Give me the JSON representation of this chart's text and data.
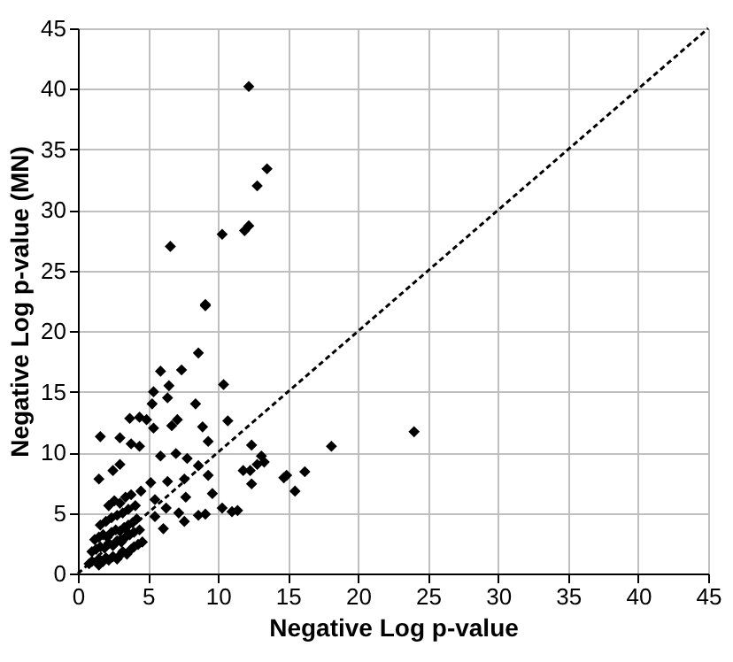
{
  "chart_data": {
    "type": "scatter",
    "xlabel": "Negative Log p-value",
    "ylabel": "Negative Log p-value (MN)",
    "xlim": [
      0,
      45
    ],
    "ylim": [
      0,
      45
    ],
    "xticks": [
      0,
      5,
      10,
      15,
      20,
      25,
      30,
      35,
      40,
      45
    ],
    "yticks": [
      0,
      5,
      10,
      15,
      20,
      25,
      30,
      35,
      40,
      45
    ],
    "grid": true,
    "series": [
      {
        "color": "#000000",
        "marker": "diamond",
        "x": [
          12.2,
          13.5,
          12.8,
          12.2,
          11.9,
          10.3,
          6.6,
          9.1,
          24,
          18.1,
          9.1,
          8.6,
          5.9,
          7.4,
          6.5,
          5.4,
          10.4,
          6.4,
          8.4,
          5.3,
          3.7,
          4.4,
          4.9,
          5.4,
          6.7,
          7.1,
          8.9,
          10.7,
          1.6,
          3.0,
          3.8,
          4.4,
          9.3,
          12.4,
          7.0,
          5.9,
          7.8,
          13.1,
          13.3,
          12.8,
          11.8,
          12.3,
          16.2,
          14.9,
          14.7,
          8.6,
          9.3,
          6.4,
          7.6,
          1.5,
          2.5,
          3.0,
          5.2,
          12.4,
          15.5,
          9.6,
          7.7,
          5.5,
          6.3,
          9.1,
          8.6,
          10.3,
          11.0,
          11.4,
          7.2,
          7.6,
          6.1,
          5.5,
          0.8,
          1.0,
          1.5,
          1.5,
          1.8,
          2.0,
          2.2,
          2.5,
          2.8,
          3.0,
          3.2,
          3.5,
          3.8,
          4.0,
          4.3,
          4.6,
          1.0,
          1.3,
          1.6,
          1.9,
          2.2,
          2.5,
          2.8,
          3.1,
          3.4,
          3.7,
          4.0,
          4.4,
          1.2,
          1.5,
          1.8,
          2.1,
          2.4,
          2.7,
          3.0,
          3.3,
          3.6,
          3.9,
          4.2,
          1.6,
          2.0,
          2.4,
          2.8,
          3.2,
          3.6,
          4.1,
          2.2,
          2.6,
          3.0,
          3.4,
          3.8,
          4.5
        ],
        "values": [
          40.2,
          33.4,
          32.0,
          28.7,
          28.3,
          28.0,
          27.0,
          22.2,
          11.7,
          10.5,
          22.1,
          18.2,
          16.7,
          16.8,
          15.5,
          15.0,
          15.6,
          14.5,
          14.0,
          14.0,
          12.8,
          12.9,
          12.7,
          12.0,
          12.2,
          12.7,
          12.1,
          12.6,
          11.3,
          11.2,
          10.7,
          10.5,
          10.9,
          10.6,
          9.9,
          9.7,
          9.5,
          9.7,
          9.2,
          9.0,
          8.5,
          8.5,
          8.4,
          8.1,
          7.9,
          8.9,
          8.1,
          7.6,
          7.8,
          7.8,
          8.5,
          9.0,
          7.5,
          7.4,
          6.8,
          6.6,
          6.3,
          6.1,
          5.4,
          4.9,
          4.8,
          5.4,
          5.1,
          5.2,
          5.0,
          4.3,
          3.7,
          4.7,
          0.8,
          1.0,
          0.7,
          1.2,
          1.0,
          1.3,
          1.1,
          1.4,
          1.2,
          1.5,
          1.8,
          1.6,
          2.0,
          2.2,
          2.4,
          2.6,
          1.8,
          2.0,
          2.2,
          2.1,
          2.5,
          2.3,
          2.7,
          2.6,
          3.0,
          3.2,
          3.4,
          3.6,
          2.8,
          3.0,
          3.2,
          3.0,
          3.4,
          3.6,
          3.5,
          3.8,
          4.0,
          4.2,
          4.5,
          4.0,
          4.3,
          4.6,
          4.8,
          5.0,
          5.3,
          5.6,
          5.6,
          6.0,
          5.8,
          6.3,
          6.5,
          6.8
        ]
      },
      {
        "type": "line",
        "color": "#000000",
        "line_style": "dashed",
        "marker": "none",
        "x": [
          0,
          45
        ],
        "values": [
          0,
          45
        ]
      }
    ]
  }
}
